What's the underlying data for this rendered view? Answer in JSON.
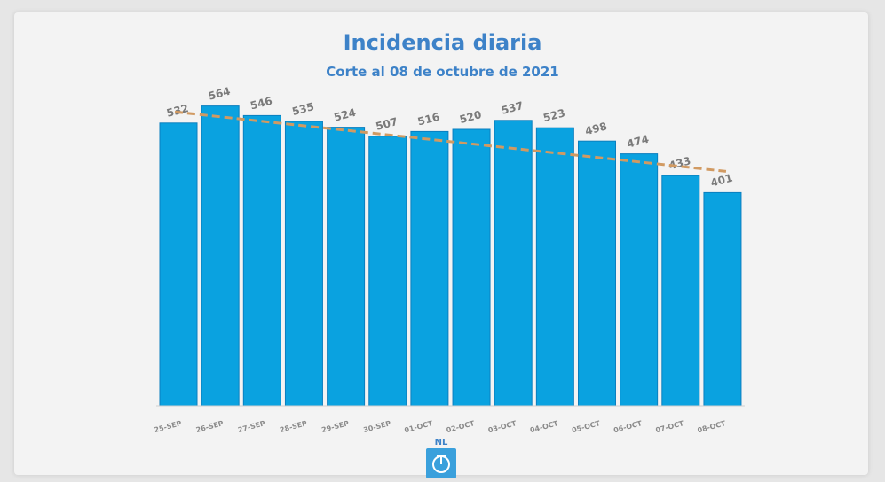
{
  "chart_data": {
    "type": "bar",
    "title": "Incidencia diaria",
    "subtitle": "Corte al 08 de octubre de 2021",
    "categories": [
      "25-SEP",
      "26-SEP",
      "27-SEP",
      "28-SEP",
      "29-SEP",
      "30-SEP",
      "01-OCT",
      "02-OCT",
      "03-OCT",
      "04-OCT",
      "05-OCT",
      "06-OCT",
      "07-OCT",
      "08-OCT"
    ],
    "values": [
      532,
      564,
      546,
      535,
      524,
      507,
      516,
      520,
      537,
      523,
      498,
      474,
      433,
      401
    ],
    "labels": [
      "532",
      "564",
      "546",
      "535",
      "524",
      "507",
      "516",
      "520",
      "537",
      "523",
      "498",
      "474",
      "433",
      "401"
    ],
    "ylim": [
      0,
      600
    ],
    "grid": false,
    "legend": "none",
    "trendline": {
      "style": "dashed",
      "from": 553,
      "to": 441
    },
    "colors": {
      "bar": "#0aa2e0",
      "trend": "#d19a62",
      "title": "#3d82c8",
      "label": "#7a7a7a"
    }
  },
  "logo": {
    "text": "NL"
  }
}
